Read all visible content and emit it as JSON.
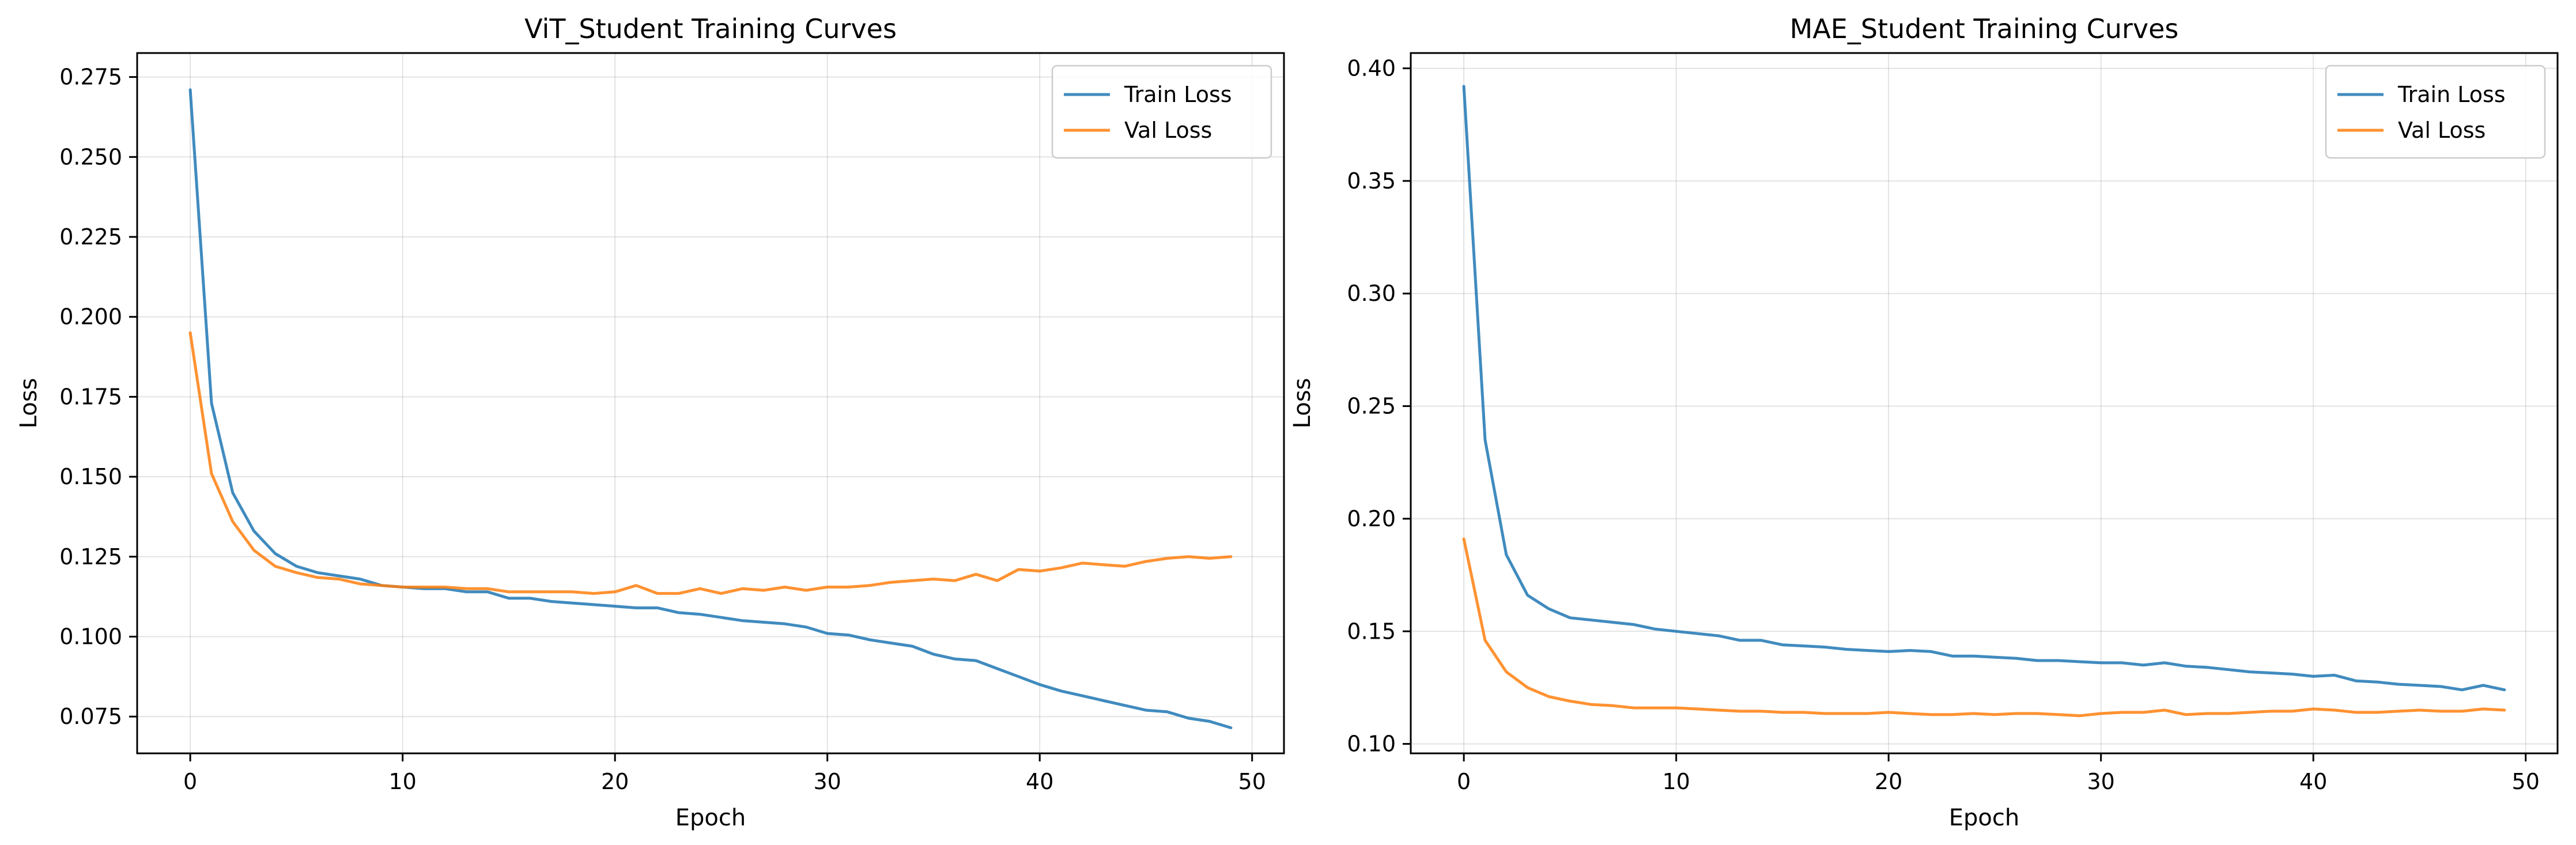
{
  "colors": {
    "train": "#1f77b4",
    "val": "#ff7f0e"
  },
  "chart_data": [
    {
      "type": "line",
      "title": "ViT_Student Training Curves",
      "xlabel": "Epoch",
      "ylabel": "Loss",
      "xlim": [
        -2.5,
        51.5
      ],
      "ylim": [
        0.0635,
        0.2825
      ],
      "xticks": [
        0,
        10,
        20,
        30,
        40,
        50
      ],
      "yticks": [
        0.075,
        0.1,
        0.125,
        0.15,
        0.175,
        0.2,
        0.225,
        0.25,
        0.275
      ],
      "ytick_labels": [
        "0.075",
        "0.100",
        "0.125",
        "0.150",
        "0.175",
        "0.200",
        "0.225",
        "0.250",
        "0.275"
      ],
      "grid": true,
      "legend": "top-right",
      "series": [
        {
          "name": "Train Loss",
          "color": "#1f77b4",
          "values": [
            0.271,
            0.173,
            0.145,
            0.133,
            0.126,
            0.122,
            0.12,
            0.119,
            0.118,
            0.116,
            0.1155,
            0.115,
            0.115,
            0.114,
            0.114,
            0.112,
            0.112,
            0.111,
            0.1105,
            0.11,
            0.1095,
            0.109,
            0.109,
            0.1075,
            0.107,
            0.106,
            0.105,
            0.1045,
            0.104,
            0.103,
            0.101,
            0.1005,
            0.099,
            0.098,
            0.097,
            0.0945,
            0.093,
            0.0925,
            0.09,
            0.0875,
            0.085,
            0.083,
            0.0815,
            0.08,
            0.0785,
            0.077,
            0.0765,
            0.0745,
            0.0735,
            0.0715
          ]
        },
        {
          "name": "Val Loss",
          "color": "#ff7f0e",
          "values": [
            0.195,
            0.151,
            0.136,
            0.127,
            0.122,
            0.12,
            0.1185,
            0.118,
            0.1165,
            0.116,
            0.1155,
            0.1155,
            0.1155,
            0.115,
            0.115,
            0.114,
            0.114,
            0.114,
            0.114,
            0.1135,
            0.114,
            0.116,
            0.1135,
            0.1135,
            0.115,
            0.1135,
            0.115,
            0.1145,
            0.1155,
            0.1145,
            0.1155,
            0.1155,
            0.116,
            0.117,
            0.1175,
            0.118,
            0.1175,
            0.1195,
            0.1175,
            0.121,
            0.1205,
            0.1215,
            0.123,
            0.1225,
            0.122,
            0.1235,
            0.1245,
            0.125,
            0.1245,
            0.125
          ]
        }
      ]
    },
    {
      "type": "line",
      "title": "MAE_Student Training Curves",
      "xlabel": "Epoch",
      "ylabel": "Loss",
      "xlim": [
        -2.5,
        51.5
      ],
      "ylim": [
        0.0958,
        0.4068
      ],
      "xticks": [
        0,
        10,
        20,
        30,
        40,
        50
      ],
      "yticks": [
        0.1,
        0.15,
        0.2,
        0.25,
        0.3,
        0.35,
        0.4
      ],
      "ytick_labels": [
        "0.10",
        "0.15",
        "0.20",
        "0.25",
        "0.30",
        "0.35",
        "0.40"
      ],
      "grid": true,
      "legend": "top-right",
      "series": [
        {
          "name": "Train Loss",
          "color": "#1f77b4",
          "values": [
            0.392,
            0.235,
            0.184,
            0.166,
            0.16,
            0.156,
            0.155,
            0.154,
            0.153,
            0.151,
            0.15,
            0.149,
            0.148,
            0.146,
            0.146,
            0.144,
            0.1435,
            0.143,
            0.142,
            0.1415,
            0.141,
            0.1415,
            0.141,
            0.139,
            0.139,
            0.1385,
            0.138,
            0.137,
            0.137,
            0.1365,
            0.136,
            0.136,
            0.135,
            0.136,
            0.1345,
            0.134,
            0.133,
            0.132,
            0.1315,
            0.131,
            0.13,
            0.1305,
            0.128,
            0.1275,
            0.1265,
            0.126,
            0.1255,
            0.124,
            0.126,
            0.124
          ]
        },
        {
          "name": "Val Loss",
          "color": "#ff7f0e",
          "values": [
            0.191,
            0.146,
            0.132,
            0.125,
            0.121,
            0.119,
            0.1175,
            0.117,
            0.116,
            0.116,
            0.116,
            0.1155,
            0.115,
            0.1145,
            0.1145,
            0.114,
            0.114,
            0.1135,
            0.1135,
            0.1135,
            0.114,
            0.1135,
            0.113,
            0.113,
            0.1135,
            0.113,
            0.1135,
            0.1135,
            0.113,
            0.1125,
            0.1135,
            0.114,
            0.114,
            0.115,
            0.113,
            0.1135,
            0.1135,
            0.114,
            0.1145,
            0.1145,
            0.1155,
            0.115,
            0.114,
            0.114,
            0.1145,
            0.115,
            0.1145,
            0.1145,
            0.1155,
            0.115
          ]
        }
      ]
    }
  ]
}
